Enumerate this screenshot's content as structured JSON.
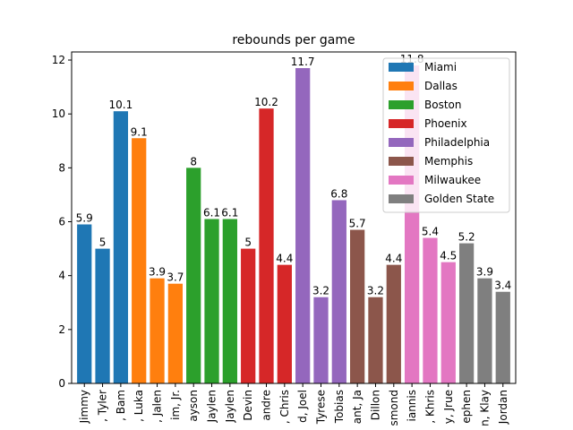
{
  "chart_data": {
    "type": "bar",
    "title": "rebounds per game",
    "xlabel": "",
    "ylabel": "",
    "ylim": [
      0,
      12.3
    ],
    "yticks": [
      0,
      2,
      4,
      6,
      8,
      10,
      12
    ],
    "legend_position": "top-right",
    "teams": [
      {
        "name": "Miami",
        "color": "#1f77b4"
      },
      {
        "name": "Dallas",
        "color": "#ff7f0e"
      },
      {
        "name": "Boston",
        "color": "#2ca02c"
      },
      {
        "name": "Phoenix",
        "color": "#d62728"
      },
      {
        "name": "Philadelphia",
        "color": "#9467bd"
      },
      {
        "name": "Memphis",
        "color": "#8c564b"
      },
      {
        "name": "Milwaukee",
        "color": "#e377c2"
      },
      {
        "name": "Golden State",
        "color": "#7f7f7f"
      }
    ],
    "bars": [
      {
        "label": "Jimmy",
        "team": 0,
        "value": 5.9
      },
      {
        "label": ", Tyler",
        "team": 0,
        "value": 5
      },
      {
        "label": ", Bam",
        "team": 0,
        "value": 10.1
      },
      {
        "label": ", Luka",
        "team": 1,
        "value": 9.1
      },
      {
        "label": ", Jalen",
        "team": 1,
        "value": 3.9
      },
      {
        "label": "im, Jr.",
        "team": 1,
        "value": 3.7
      },
      {
        "label": "ayson",
        "team": 2,
        "value": 8
      },
      {
        "label": "Jaylen",
        "team": 2,
        "value": 6.1
      },
      {
        "label": "Jaylen",
        "team": 2,
        "value": 6.1
      },
      {
        "label": "Devin",
        "team": 3,
        "value": 5
      },
      {
        "label": "andre",
        "team": 3,
        "value": 10.2
      },
      {
        "label": ", Chris",
        "team": 3,
        "value": 4.4
      },
      {
        "label": "d, Joel",
        "team": 4,
        "value": 11.7
      },
      {
        "label": "Tyrese",
        "team": 4,
        "value": 3.2
      },
      {
        "label": "Tobias",
        "team": 4,
        "value": 6.8
      },
      {
        "label": "ant, Ja",
        "team": 5,
        "value": 5.7
      },
      {
        "label": "Dillon",
        "team": 5,
        "value": 3.2
      },
      {
        "label": "smond",
        "team": 5,
        "value": 4.4
      },
      {
        "label": "iannis",
        "team": 6,
        "value": 11.8
      },
      {
        "label": ", Khris",
        "team": 6,
        "value": 5.4
      },
      {
        "label": "y, Jrue",
        "team": 6,
        "value": 4.5
      },
      {
        "label": "ephen",
        "team": 7,
        "value": 5.2
      },
      {
        "label": "n, Klay",
        "team": 7,
        "value": 3.9
      },
      {
        "label": "Jordan",
        "team": 7,
        "value": 3.4
      }
    ]
  }
}
